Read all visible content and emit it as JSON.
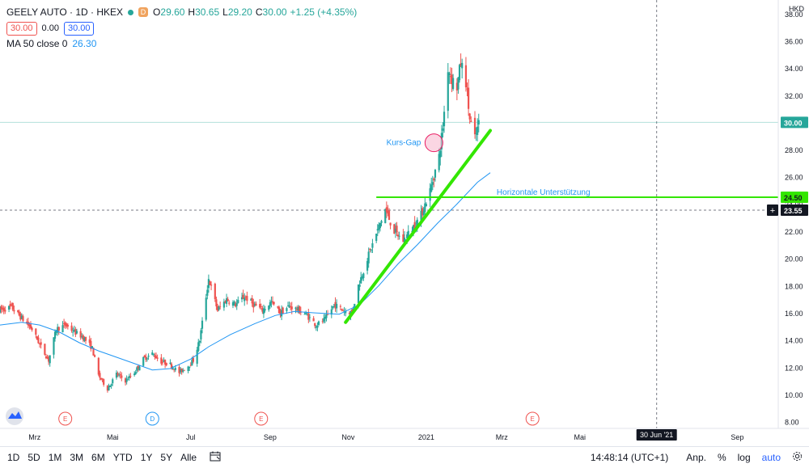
{
  "header": {
    "symbol": "GEELY AUTO · 1D · HKEX",
    "source_badge": "D",
    "open_label": "O",
    "open": "29.60",
    "high_label": "H",
    "high": "30.65",
    "low_label": "L",
    "low": "29.20",
    "close_label": "C",
    "close": "30.00",
    "change": "+1.25 (+4.35%)",
    "sell_price": "30.00",
    "spread": "0.00",
    "buy_price": "30.00",
    "ma_label": "MA 50 close 0",
    "ma_value": "26.30"
  },
  "currency": "HKD",
  "bottom_bar": {
    "ranges": [
      "1D",
      "5D",
      "1M",
      "3M",
      "6M",
      "YTD",
      "1Y",
      "5Y",
      "Alle"
    ],
    "calendar_icon": "calendar-icon",
    "clock": "14:48:14 (UTC+1)",
    "adjust": "Anp.",
    "percent": "%",
    "log": "log",
    "auto": "auto",
    "settings_icon": "gear-icon"
  },
  "colors": {
    "up": "#26a69a",
    "down": "#ef5350",
    "ma": "#2196f3",
    "trendline": "#33e600",
    "accent": "#2962ff"
  },
  "chart_data": {
    "type": "candlestick",
    "y_axis": {
      "range": [
        7.5,
        39
      ],
      "ticks": [
        8,
        10,
        12,
        14,
        16,
        18,
        20,
        22,
        24,
        26,
        28,
        30,
        32,
        34,
        36,
        38
      ],
      "tick_labels": [
        "8.00",
        "10.00",
        "12.00",
        "14.00",
        "16.00",
        "18.00",
        "20.00",
        "22.00",
        "24.00",
        "26.00",
        "28.00",
        "30.00",
        "32.00",
        "34.00",
        "36.00",
        "38.00"
      ],
      "markers": [
        {
          "label": "30.00",
          "value": 30.0,
          "color": "#26a69a",
          "text_color": "#ffffff"
        },
        {
          "label": "24.50",
          "value": 24.5,
          "color": "#33e600",
          "text_color": "#131722"
        },
        {
          "label": "23.55",
          "value": 23.55,
          "color": "#131722",
          "text_color": "#ffffff"
        }
      ]
    },
    "x_axis": {
      "start": "2020-02-03",
      "end": "2021-10-03",
      "tick_labels": [
        {
          "date": "2020-03-01",
          "label": "Mrz"
        },
        {
          "date": "2020-05-01",
          "label": "Mai"
        },
        {
          "date": "2020-07-01",
          "label": "Jul"
        },
        {
          "date": "2020-09-01",
          "label": "Sep"
        },
        {
          "date": "2020-11-01",
          "label": "Nov"
        },
        {
          "date": "2021-01-01",
          "label": "2021"
        },
        {
          "date": "2021-03-01",
          "label": "Mrz"
        },
        {
          "date": "2021-05-01",
          "label": "Mai"
        },
        {
          "date": "2021-09-01",
          "label": "Sep"
        }
      ],
      "crosshair_label": {
        "date": "2021-06-30",
        "label": "30 Jun '21"
      }
    },
    "events": [
      {
        "date": "2020-03-25",
        "label": "E",
        "kind": "earnings"
      },
      {
        "date": "2020-06-01",
        "label": "D",
        "kind": "dividend"
      },
      {
        "date": "2020-08-25",
        "label": "E",
        "kind": "earnings"
      },
      {
        "date": "2021-03-25",
        "label": "E",
        "kind": "earnings"
      }
    ],
    "crosshair": {
      "date": "2021-06-30",
      "price": 23.55
    },
    "annotations": [
      {
        "text": "Kurs-Gap",
        "date": "2021-01-07",
        "price": 28.5,
        "shape": "circle"
      },
      {
        "text": "Horizontale Unterstützung",
        "price": 24.5,
        "from": "2020-11-23",
        "to": "2021-10-03",
        "shape": "horizontal-line"
      }
    ],
    "trendline": {
      "from": {
        "date": "2020-10-30",
        "price": 15.3
      },
      "to": {
        "date": "2021-02-20",
        "price": 29.4
      }
    },
    "series": [
      {
        "name": "GEELY AUTO",
        "type": "candlestick",
        "ohlc_dates": [],
        "values_note": ""
      },
      {
        "name": "MA 50 close 0",
        "type": "line"
      }
    ],
    "ma_points": [
      [
        "2020-02-03",
        15.1
      ],
      [
        "2020-02-20",
        15.3
      ],
      [
        "2020-03-05",
        15.1
      ],
      [
        "2020-03-20",
        14.6
      ],
      [
        "2020-04-05",
        13.8
      ],
      [
        "2020-04-20",
        13.2
      ],
      [
        "2020-05-05",
        12.7
      ],
      [
        "2020-05-20",
        12.2
      ],
      [
        "2020-06-01",
        11.8
      ],
      [
        "2020-06-15",
        11.9
      ],
      [
        "2020-07-01",
        12.6
      ],
      [
        "2020-07-15",
        13.5
      ],
      [
        "2020-08-01",
        14.4
      ],
      [
        "2020-08-20",
        15.2
      ],
      [
        "2020-09-05",
        15.8
      ],
      [
        "2020-09-20",
        16.1
      ],
      [
        "2020-10-05",
        16.0
      ],
      [
        "2020-10-25",
        15.9
      ],
      [
        "2020-11-10",
        16.6
      ],
      [
        "2020-11-25",
        18.0
      ],
      [
        "2020-12-10",
        19.6
      ],
      [
        "2020-12-25",
        21.0
      ],
      [
        "2021-01-10",
        22.6
      ],
      [
        "2021-01-25",
        24.0
      ],
      [
        "2021-02-10",
        25.6
      ],
      [
        "2021-02-20",
        26.3
      ]
    ],
    "close_points": [
      [
        "2020-02-03",
        16.2
      ],
      [
        "2020-02-12",
        16.4
      ],
      [
        "2020-02-20",
        15.6
      ],
      [
        "2020-02-28",
        14.8
      ],
      [
        "2020-03-06",
        13.5
      ],
      [
        "2020-03-12",
        12.5
      ],
      [
        "2020-03-18",
        14.8
      ],
      [
        "2020-03-25",
        15.1
      ],
      [
        "2020-04-01",
        14.6
      ],
      [
        "2020-04-08",
        14.2
      ],
      [
        "2020-04-15",
        13.4
      ],
      [
        "2020-04-20",
        11.4
      ],
      [
        "2020-04-27",
        10.4
      ],
      [
        "2020-05-04",
        11.5
      ],
      [
        "2020-05-11",
        11.0
      ],
      [
        "2020-05-18",
        11.6
      ],
      [
        "2020-05-25",
        12.6
      ],
      [
        "2020-06-01",
        13.0
      ],
      [
        "2020-06-08",
        12.4
      ],
      [
        "2020-06-15",
        12.2
      ],
      [
        "2020-06-22",
        11.6
      ],
      [
        "2020-06-29",
        12.1
      ],
      [
        "2020-07-03",
        12.5
      ],
      [
        "2020-07-08",
        14.0
      ],
      [
        "2020-07-15",
        18.5
      ],
      [
        "2020-07-22",
        16.2
      ],
      [
        "2020-07-29",
        17.0
      ],
      [
        "2020-08-05",
        16.6
      ],
      [
        "2020-08-12",
        17.2
      ],
      [
        "2020-08-19",
        16.6
      ],
      [
        "2020-08-26",
        16.2
      ],
      [
        "2020-09-02",
        16.8
      ],
      [
        "2020-09-09",
        16.0
      ],
      [
        "2020-09-16",
        16.5
      ],
      [
        "2020-09-23",
        16.2
      ],
      [
        "2020-09-30",
        15.8
      ],
      [
        "2020-10-07",
        15.1
      ],
      [
        "2020-10-14",
        15.5
      ],
      [
        "2020-10-21",
        16.6
      ],
      [
        "2020-10-28",
        16.2
      ],
      [
        "2020-11-04",
        16.0
      ],
      [
        "2020-11-09",
        18.0
      ],
      [
        "2020-11-16",
        20.0
      ],
      [
        "2020-11-23",
        21.8
      ],
      [
        "2020-11-30",
        23.6
      ],
      [
        "2020-12-07",
        22.0
      ],
      [
        "2020-12-14",
        21.3
      ],
      [
        "2020-12-21",
        22.2
      ],
      [
        "2020-12-28",
        23.2
      ],
      [
        "2021-01-04",
        25.0
      ],
      [
        "2021-01-11",
        27.5
      ],
      [
        "2021-01-14",
        29.7
      ],
      [
        "2021-01-18",
        34.0
      ],
      [
        "2021-01-21",
        33.2
      ],
      [
        "2021-01-25",
        32.6
      ],
      [
        "2021-01-28",
        34.4
      ],
      [
        "2021-02-01",
        33.0
      ],
      [
        "2021-02-04",
        30.2
      ],
      [
        "2021-02-08",
        28.8
      ],
      [
        "2021-02-11",
        29.9
      ]
    ]
  }
}
